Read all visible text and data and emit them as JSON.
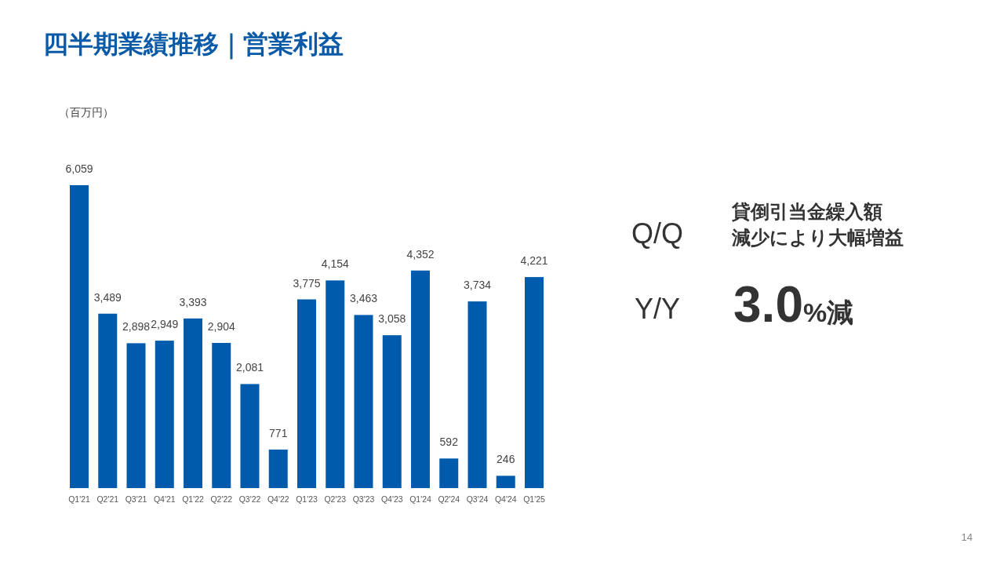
{
  "chart_data": {
    "type": "bar",
    "title": "四半期業績推移｜営業利益",
    "categories": [
      "Q1'21",
      "Q2'21",
      "Q3'21",
      "Q4'21",
      "Q1'22",
      "Q2'22",
      "Q3'22",
      "Q4'22",
      "Q1'23",
      "Q2'23",
      "Q3'23",
      "Q4'23",
      "Q1'24",
      "Q2'24",
      "Q3'24",
      "Q4'24",
      "Q1'25"
    ],
    "values": [
      6059,
      3489,
      2898,
      2949,
      3393,
      2904,
      2081,
      771,
      3775,
      4154,
      3463,
      3058,
      4352,
      592,
      3734,
      246,
      4221
    ],
    "value_labels": [
      "6,059",
      "3,489",
      "2,898",
      "2,949",
      "3,393",
      "2,904",
      "2,081",
      "771",
      "3,775",
      "4,154",
      "3,463",
      "3,058",
      "4,352",
      "592",
      "3,734",
      "246",
      "4,221"
    ],
    "color": "#005bac",
    "annotations": [
      "（百万円）",
      "Q/Q",
      "貸倒引当金繰入額",
      "減少により大幅増益",
      "Y/Y",
      "3.0%減",
      "14"
    ]
  }
}
